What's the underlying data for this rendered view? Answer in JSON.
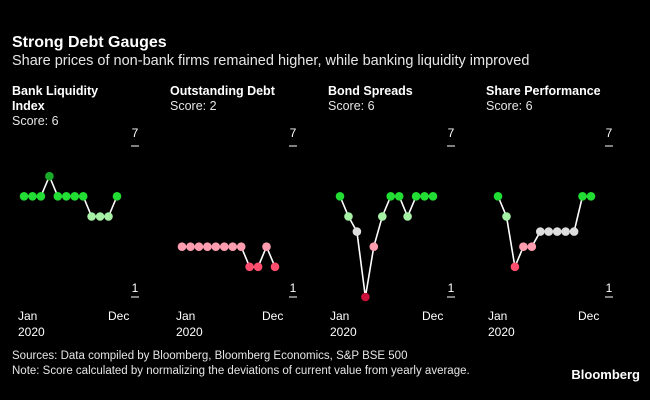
{
  "header": {
    "title": "Strong Debt Gauges",
    "subtitle": "Share prices of non-bank firms remained higher, while banking liquidity improved"
  },
  "footer": {
    "sources": "Sources: Data compiled by Bloomberg, Bloomberg Economics, S&P BSE 500",
    "note": "Note: Score calculated by normalizing the deviations of current value from yearly average.",
    "brand": "Bloomberg"
  },
  "colors": {
    "bright_green": "#22dd33",
    "dark_green": "#1aaa2a",
    "light_green": "#a6f0a6",
    "neutral": "#dddddd",
    "light_pink": "#ff9db0",
    "pink": "#ff4d6d",
    "dark_red": "#c8103a",
    "line": "#ffffff"
  },
  "chart_data": [
    {
      "type": "line",
      "title": "Bank Liquidity Index",
      "title_lines": [
        "Bank Liquidity",
        "Index"
      ],
      "score_label": "Score: 6",
      "ylim": [
        1,
        7
      ],
      "ytick_labels": [
        "7",
        "1"
      ],
      "x_start_label": [
        "Jan",
        "2020"
      ],
      "x_end_label": "Dec",
      "series": [
        {
          "values": [
            5.0,
            5.0,
            5.0,
            5.8,
            5.0,
            5.0,
            5.0,
            5.0,
            4.2,
            4.2,
            4.2,
            5.0
          ]
        }
      ]
    },
    {
      "type": "line",
      "title": "Outstanding Debt",
      "title_lines": [
        "Outstanding Debt"
      ],
      "score_label": "Score: 2",
      "ylim": [
        1,
        7
      ],
      "ytick_labels": [
        "7",
        "1"
      ],
      "x_start_label": [
        "Jan",
        "2020"
      ],
      "x_end_label": "Dec",
      "series": [
        {
          "values": [
            3.0,
            3.0,
            3.0,
            3.0,
            3.0,
            3.0,
            3.0,
            3.0,
            2.2,
            2.2,
            3.0,
            2.2
          ]
        }
      ]
    },
    {
      "type": "line",
      "title": "Bond Spreads",
      "title_lines": [
        "Bond Spreads"
      ],
      "score_label": "Score: 6",
      "ylim": [
        1,
        7
      ],
      "ytick_labels": [
        "7",
        "1"
      ],
      "x_start_label": [
        "Jan",
        "2020"
      ],
      "x_end_label": "Dec",
      "series": [
        {
          "values": [
            5.0,
            4.2,
            3.6,
            1.0,
            3.0,
            4.2,
            5.0,
            5.0,
            4.2,
            5.0,
            5.0,
            5.0
          ]
        }
      ]
    },
    {
      "type": "line",
      "title": "Share Performance",
      "title_lines": [
        "Share Performance"
      ],
      "score_label": "Score: 6",
      "ylim": [
        1,
        7
      ],
      "ytick_labels": [
        "7",
        "1"
      ],
      "x_start_label": [
        "Jan",
        "2020"
      ],
      "x_end_label": "Dec",
      "series": [
        {
          "values": [
            5.0,
            4.2,
            2.2,
            3.0,
            3.0,
            3.6,
            3.6,
            3.6,
            3.6,
            3.6,
            5.0,
            5.0
          ]
        }
      ]
    }
  ]
}
